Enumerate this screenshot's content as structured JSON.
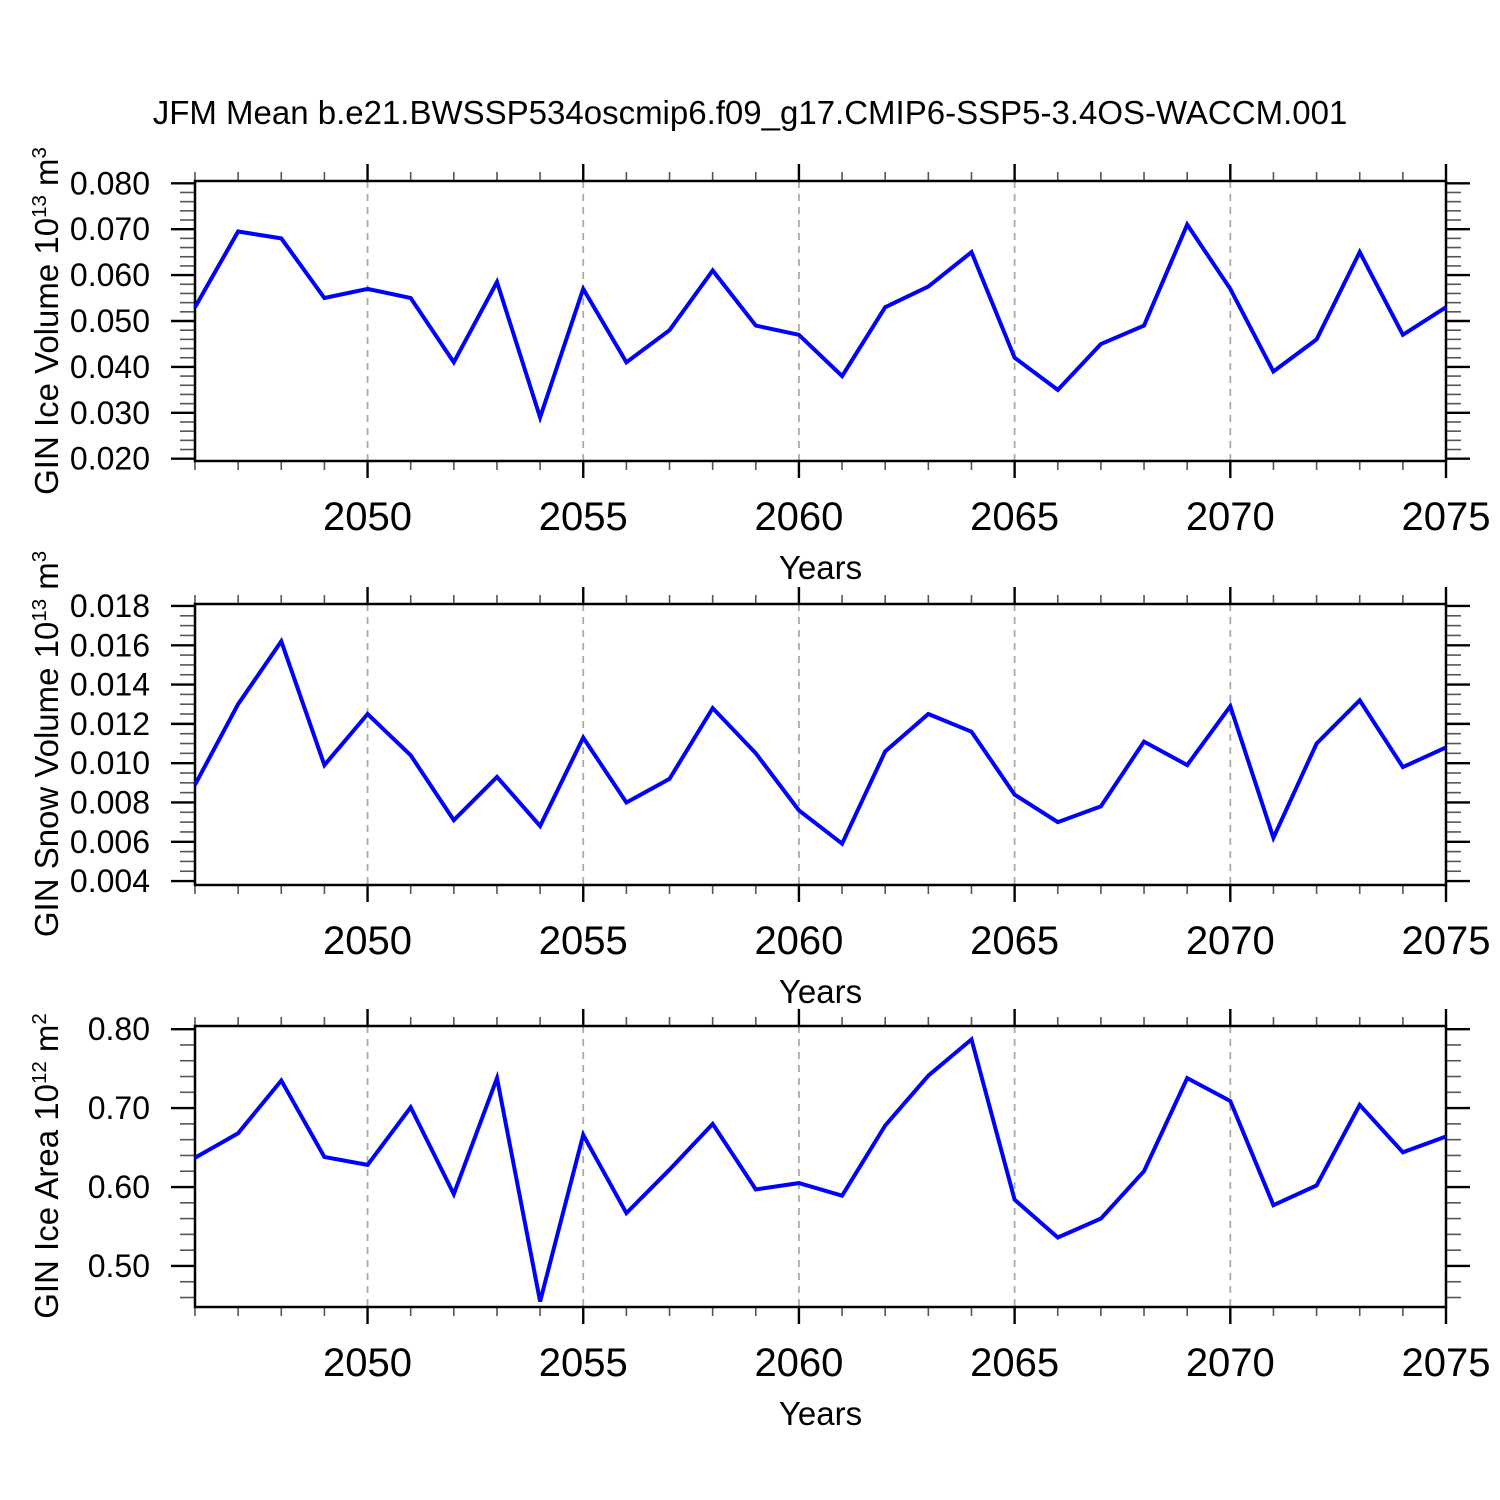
{
  "page": {
    "title": "JFM Mean b.e21.BWSSP534oscmip6.f09_g17.CMIP6-SSP5-3.4OS-WACCM.001"
  },
  "colors": {
    "line": "#0000ff",
    "frame": "#000000",
    "major_tick": "#000000",
    "minor_tick": "#555555",
    "grid": "#aaaaaa",
    "text": "#000000"
  },
  "chart_data": [
    {
      "type": "line",
      "name": "gin-ice-volume",
      "ylabel": {
        "pre": "GIN Ice Volume 10",
        "sup1": "13",
        "mid": " m",
        "sup2": "3"
      },
      "xlabel": "Years",
      "xlim": [
        2046,
        2075
      ],
      "ylim": [
        0.0195,
        0.0805
      ],
      "yticks": [
        0.02,
        0.03,
        0.04,
        0.05,
        0.06,
        0.07,
        0.08
      ],
      "ytick_decimals": 3,
      "yminor_step": 0.002,
      "xticks_labeled": [
        2050,
        2055,
        2060,
        2065,
        2070,
        2075
      ],
      "xminor_step": 1,
      "grid_years": [
        2050,
        2055,
        2060,
        2065,
        2070
      ],
      "years": [
        2046,
        2047,
        2048,
        2049,
        2050,
        2051,
        2052,
        2053,
        2054,
        2055,
        2056,
        2057,
        2058,
        2059,
        2060,
        2061,
        2062,
        2063,
        2064,
        2065,
        2066,
        2067,
        2068,
        2069,
        2070,
        2071,
        2072,
        2073,
        2074,
        2075
      ],
      "values": [
        0.053,
        0.0695,
        0.068,
        0.055,
        0.057,
        0.055,
        0.041,
        0.0585,
        0.029,
        0.057,
        0.041,
        0.048,
        0.061,
        0.049,
        0.047,
        0.038,
        0.053,
        0.0575,
        0.065,
        0.042,
        0.035,
        0.045,
        0.049,
        0.071,
        0.057,
        0.039,
        0.046,
        0.065,
        0.047,
        0.053
      ]
    },
    {
      "type": "line",
      "name": "gin-snow-volume",
      "ylabel": {
        "pre": "GIN Snow Volume 10",
        "sup1": "13",
        "mid": " m",
        "sup2": "3"
      },
      "xlabel": "Years",
      "xlim": [
        2046,
        2075
      ],
      "ylim": [
        0.0038,
        0.0181
      ],
      "yticks": [
        0.004,
        0.006,
        0.008,
        0.01,
        0.012,
        0.014,
        0.016,
        0.018
      ],
      "ytick_decimals": 3,
      "yminor_step": 0.0005,
      "xticks_labeled": [
        2050,
        2055,
        2060,
        2065,
        2070,
        2075
      ],
      "xminor_step": 1,
      "grid_years": [
        2050,
        2055,
        2060,
        2065,
        2070
      ],
      "years": [
        2046,
        2047,
        2048,
        2049,
        2050,
        2051,
        2052,
        2053,
        2054,
        2055,
        2056,
        2057,
        2058,
        2059,
        2060,
        2061,
        2062,
        2063,
        2064,
        2065,
        2066,
        2067,
        2068,
        2069,
        2070,
        2071,
        2072,
        2073,
        2074,
        2075
      ],
      "values": [
        0.0089,
        0.013,
        0.0162,
        0.0099,
        0.0125,
        0.0104,
        0.0071,
        0.0093,
        0.0068,
        0.0113,
        0.008,
        0.0092,
        0.0128,
        0.0105,
        0.0076,
        0.0059,
        0.0106,
        0.0125,
        0.0116,
        0.0084,
        0.007,
        0.0078,
        0.0111,
        0.0099,
        0.0129,
        0.0062,
        0.011,
        0.0132,
        0.0098,
        0.0108
      ]
    },
    {
      "type": "line",
      "name": "gin-ice-area",
      "ylabel": {
        "pre": "GIN Ice Area 10",
        "sup1": "12",
        "mid": " m",
        "sup2": "2"
      },
      "xlabel": "Years",
      "xlim": [
        2046,
        2075
      ],
      "ylim": [
        0.448,
        0.804
      ],
      "yticks": [
        0.5,
        0.6,
        0.7,
        0.8
      ],
      "ytick_decimals": 2,
      "yminor_step": 0.02,
      "xticks_labeled": [
        2050,
        2055,
        2060,
        2065,
        2070,
        2075
      ],
      "xminor_step": 1,
      "grid_years": [
        2050,
        2055,
        2060,
        2065,
        2070
      ],
      "years": [
        2046,
        2047,
        2048,
        2049,
        2050,
        2051,
        2052,
        2053,
        2054,
        2055,
        2056,
        2057,
        2058,
        2059,
        2060,
        2061,
        2062,
        2063,
        2064,
        2065,
        2066,
        2067,
        2068,
        2069,
        2070,
        2071,
        2072,
        2073,
        2074,
        2075
      ],
      "values": [
        0.637,
        0.668,
        0.735,
        0.638,
        0.628,
        0.701,
        0.591,
        0.738,
        0.455,
        0.666,
        0.567,
        0.622,
        0.68,
        0.597,
        0.605,
        0.589,
        0.678,
        0.741,
        0.787,
        0.584,
        0.536,
        0.56,
        0.62,
        0.738,
        0.709,
        0.577,
        0.602,
        0.704,
        0.644,
        0.664
      ]
    }
  ]
}
